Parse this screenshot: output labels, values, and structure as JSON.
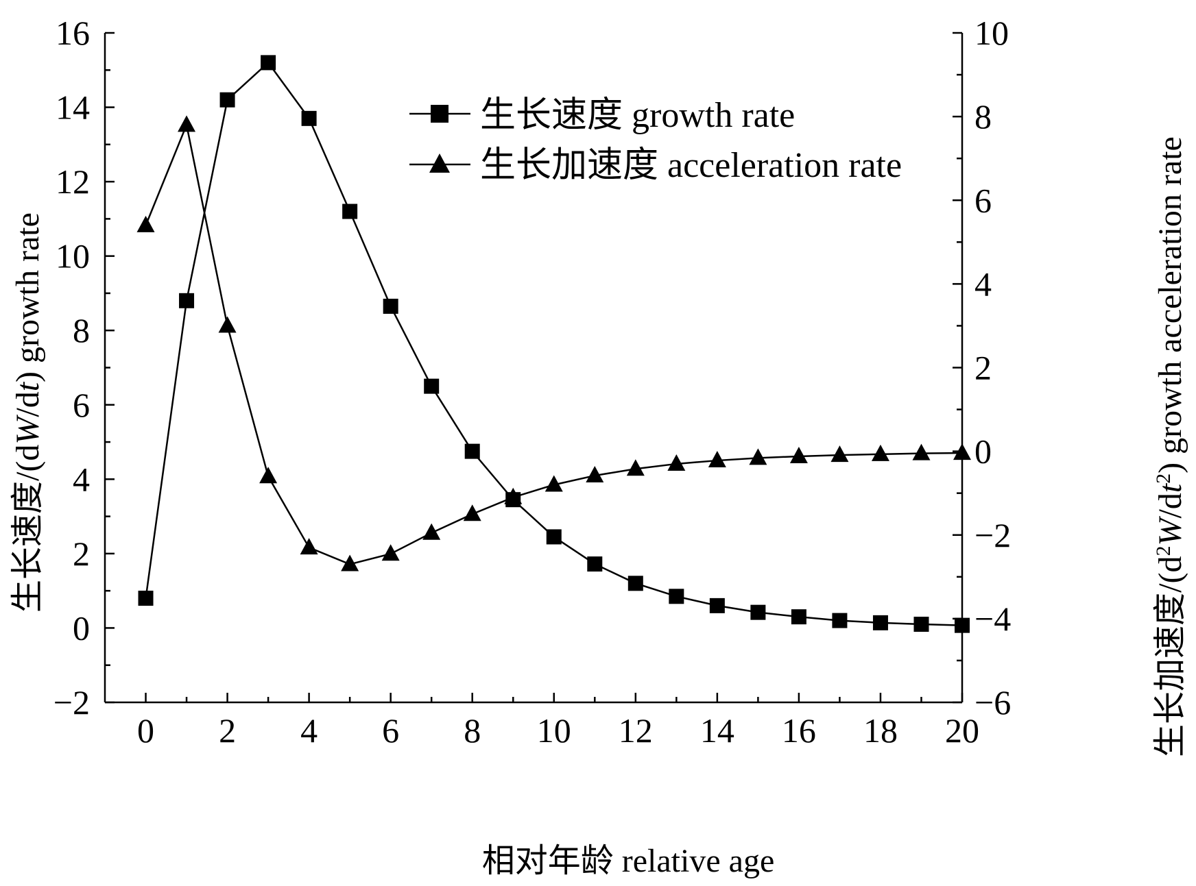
{
  "chart_data": {
    "type": "line",
    "x": [
      0,
      1,
      2,
      3,
      4,
      5,
      6,
      7,
      8,
      9,
      10,
      11,
      12,
      13,
      14,
      15,
      16,
      17,
      18,
      19,
      20
    ],
    "xlabel": "相对年龄 relative age",
    "ylabel_left_cn": "生长速度/(d",
    "ylabel_left_var": "W",
    "ylabel_left_mid": "/d",
    "ylabel_left_var2": "t",
    "ylabel_left_end": ") growth rate",
    "ylabel_right_cn": "生长加速度/(d",
    "ylabel_right_sup": "2",
    "ylabel_right_var": "W",
    "ylabel_right_mid": "/d",
    "ylabel_right_var2": "t",
    "ylabel_right_end": ") growth acceleration rate",
    "xlim": [
      -1,
      20
    ],
    "ylim_left": [
      -2,
      16
    ],
    "ylim_right": [
      -6,
      10
    ],
    "xticks": [
      "0",
      "2",
      "4",
      "6",
      "8",
      "10",
      "12",
      "14",
      "16",
      "18",
      "20"
    ],
    "yticks_left": [
      "−2",
      "0",
      "2",
      "4",
      "6",
      "8",
      "10",
      "12",
      "14",
      "16"
    ],
    "yticks_right": [
      "−6",
      "−4",
      "−2",
      "0",
      "2",
      "4",
      "6",
      "8",
      "10"
    ],
    "legend_position": "top-center",
    "series": [
      {
        "name": "生长速度 growth rate",
        "axis": "left",
        "marker": "square",
        "values": [
          0.8,
          8.8,
          14.2,
          15.2,
          13.7,
          11.2,
          8.65,
          6.5,
          4.75,
          3.45,
          2.45,
          1.72,
          1.2,
          0.85,
          0.6,
          0.42,
          0.3,
          0.2,
          0.14,
          0.1,
          0.07
        ]
      },
      {
        "name": "生长加速度 acceleration rate",
        "axis": "right",
        "marker": "triangle",
        "values": [
          5.4,
          7.8,
          3.0,
          -0.6,
          -2.3,
          -2.7,
          -2.45,
          -1.95,
          -1.5,
          -1.1,
          -0.8,
          -0.58,
          -0.42,
          -0.3,
          -0.22,
          -0.16,
          -0.12,
          -0.09,
          -0.07,
          -0.05,
          -0.04
        ]
      }
    ]
  }
}
